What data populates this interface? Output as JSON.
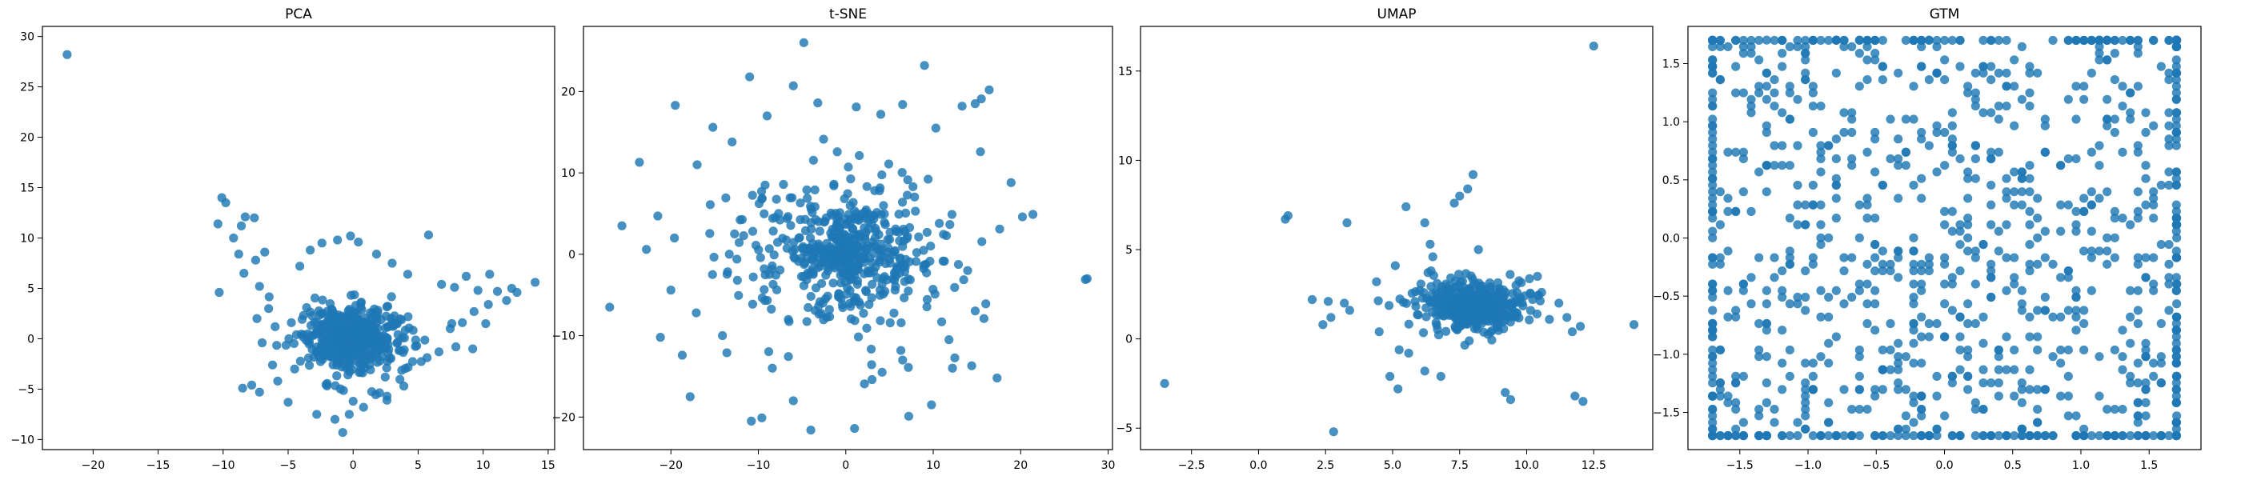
{
  "chart_data": [
    {
      "type": "scatter",
      "title": "PCA",
      "xlabel": "",
      "ylabel": "",
      "xlim": [
        -23.9,
        15.5
      ],
      "ylim": [
        -11.0,
        31.0
      ],
      "xticks": [
        -20,
        -15,
        -10,
        -5,
        0,
        5,
        10,
        15
      ],
      "yticks": [
        -10,
        -5,
        0,
        5,
        10,
        15,
        20,
        25,
        30
      ],
      "xtick_labels": [
        "−20",
        "−15",
        "−10",
        "−5",
        "0",
        "5",
        "10",
        "15"
      ],
      "ytick_labels": [
        "−10",
        "−5",
        "0",
        "5",
        "10",
        "15",
        "20",
        "25",
        "30"
      ],
      "color": "#1f77b4",
      "grid": false,
      "points": [
        [
          -22.0,
          28.2
        ],
        [
          -10.1,
          14.0
        ],
        [
          -9.8,
          13.5
        ],
        [
          -10.4,
          11.4
        ],
        [
          -9.2,
          10.0
        ],
        [
          -10.3,
          4.6
        ],
        [
          -8.6,
          11.2
        ],
        [
          -8.3,
          12.1
        ],
        [
          -7.6,
          12.0
        ],
        [
          -8.8,
          8.4
        ],
        [
          -7.5,
          7.8
        ],
        [
          -8.4,
          6.5
        ],
        [
          -6.8,
          8.6
        ],
        [
          -7.2,
          5.2
        ],
        [
          -6.5,
          3.0
        ],
        [
          -7.4,
          2.0
        ],
        [
          -6.0,
          1.2
        ],
        [
          -7.0,
          -0.4
        ],
        [
          -6.2,
          -2.6
        ],
        [
          -7.8,
          -4.6
        ],
        [
          -7.2,
          -5.3
        ],
        [
          -8.5,
          -4.9
        ],
        [
          -5.8,
          -4.2
        ],
        [
          -5.0,
          -6.3
        ],
        [
          -4.5,
          -3.0
        ],
        [
          -4.1,
          7.2
        ],
        [
          -3.3,
          8.8
        ],
        [
          -2.4,
          9.5
        ],
        [
          -1.2,
          9.8
        ],
        [
          -0.2,
          10.2
        ],
        [
          0.4,
          9.6
        ],
        [
          1.8,
          8.4
        ],
        [
          3.0,
          7.5
        ],
        [
          5.8,
          10.3
        ],
        [
          4.2,
          6.4
        ],
        [
          6.8,
          5.4
        ],
        [
          7.8,
          5.1
        ],
        [
          8.7,
          6.2
        ],
        [
          9.6,
          4.8
        ],
        [
          10.5,
          6.4
        ],
        [
          11.1,
          4.7
        ],
        [
          12.2,
          5.0
        ],
        [
          11.8,
          3.8
        ],
        [
          10.4,
          3.4
        ],
        [
          9.3,
          2.7
        ],
        [
          8.4,
          1.6
        ],
        [
          7.9,
          -0.8
        ],
        [
          6.6,
          -1.3
        ],
        [
          9.2,
          -1.0
        ],
        [
          10.2,
          1.5
        ],
        [
          12.6,
          4.6
        ],
        [
          14.0,
          5.6
        ],
        [
          -0.3,
          -7.5
        ],
        [
          -1.4,
          -8.0
        ],
        [
          -0.8,
          -9.3
        ],
        [
          0.8,
          -6.8
        ],
        [
          2.6,
          -6.1
        ],
        [
          3.9,
          -4.7
        ],
        [
          -2.8,
          -7.5
        ],
        [
          0.0,
          -6.2
        ]
      ],
      "blob": {
        "center": [
          0.0,
          0.0
        ],
        "spread": [
          3.1,
          2.9
        ],
        "count": 700
      }
    },
    {
      "type": "scatter",
      "title": "t-SNE",
      "xlabel": "",
      "ylabel": "",
      "xlim": [
        -30.0,
        30.5
      ],
      "ylim": [
        -24.0,
        28.0
      ],
      "xticks": [
        -20,
        -10,
        0,
        10,
        20,
        30
      ],
      "yticks": [
        -20,
        -10,
        0,
        10,
        20
      ],
      "xtick_labels": [
        "−20",
        "−10",
        "0",
        "10",
        "20",
        "30"
      ],
      "ytick_labels": [
        "−20",
        "−10",
        "0",
        "10",
        "20"
      ],
      "color": "#1f77b4",
      "grid": false,
      "points": [
        [
          -27.0,
          -6.5
        ],
        [
          27.6,
          -3.0
        ],
        [
          27.4,
          -3.1
        ],
        [
          -4.8,
          26.0
        ],
        [
          9.0,
          23.2
        ],
        [
          -11.0,
          21.8
        ],
        [
          -6.0,
          20.7
        ],
        [
          -19.5,
          18.3
        ],
        [
          -15.2,
          15.6
        ],
        [
          16.4,
          20.2
        ],
        [
          15.5,
          19.1
        ],
        [
          14.8,
          18.5
        ],
        [
          20.2,
          4.6
        ],
        [
          21.4,
          4.9
        ],
        [
          -22.8,
          0.6
        ],
        [
          -23.6,
          11.3
        ],
        [
          -21.5,
          4.7
        ],
        [
          -20.0,
          -4.4
        ],
        [
          -21.2,
          -10.2
        ],
        [
          -18.7,
          -12.4
        ],
        [
          -17.8,
          -17.5
        ],
        [
          -10.8,
          -20.5
        ],
        [
          -9.6,
          -20.1
        ],
        [
          -4.0,
          -21.6
        ],
        [
          1.0,
          -21.4
        ],
        [
          7.2,
          -19.9
        ],
        [
          9.8,
          -18.5
        ],
        [
          14.4,
          -13.7
        ],
        [
          12.2,
          -14.0
        ],
        [
          17.3,
          -15.2
        ],
        [
          6.5,
          18.4
        ],
        [
          4.0,
          17.2
        ],
        [
          1.2,
          18.1
        ],
        [
          -3.2,
          18.6
        ],
        [
          -9.0,
          17.0
        ],
        [
          -13.0,
          13.8
        ],
        [
          -17.0,
          11.0
        ],
        [
          -19.6,
          2.0
        ],
        [
          -17.1,
          -7.2
        ],
        [
          -13.6,
          -12.1
        ],
        [
          -8.4,
          -14.0
        ],
        [
          -6.0,
          -18.0
        ],
        [
          3.0,
          -15.4
        ],
        [
          6.5,
          -13.0
        ],
        [
          11.8,
          -10.5
        ],
        [
          15.8,
          -7.9
        ],
        [
          17.6,
          3.1
        ],
        [
          18.9,
          8.8
        ],
        [
          15.4,
          12.6
        ],
        [
          10.3,
          15.5
        ],
        [
          13.3,
          18.2
        ],
        [
          -15.5,
          6.1
        ],
        [
          -12.4,
          -3.2
        ],
        [
          -25.6,
          3.5
        ]
      ],
      "blob": {
        "center": [
          0.0,
          0.0
        ],
        "spread": [
          8.8,
          8.0
        ],
        "count": 580
      }
    },
    {
      "type": "scatter",
      "title": "UMAP",
      "xlabel": "",
      "ylabel": "",
      "xlim": [
        -4.4,
        14.7
      ],
      "ylim": [
        -6.2,
        17.5
      ],
      "xticks": [
        -2.5,
        0.0,
        2.5,
        5.0,
        7.5,
        10.0,
        12.5
      ],
      "yticks": [
        -5,
        0,
        5,
        10,
        15
      ],
      "xtick_labels": [
        "−2.5",
        "0.0",
        "2.5",
        "5.0",
        "7.5",
        "10.0",
        "12.5"
      ],
      "ytick_labels": [
        "−5",
        "0",
        "5",
        "10",
        "15"
      ],
      "color": "#1f77b4",
      "grid": false,
      "points": [
        [
          12.5,
          16.4
        ],
        [
          -3.5,
          -2.5
        ],
        [
          2.8,
          -5.2
        ],
        [
          1.0,
          6.7
        ],
        [
          1.1,
          6.9
        ],
        [
          3.3,
          6.5
        ],
        [
          5.5,
          7.4
        ],
        [
          6.2,
          6.5
        ],
        [
          8.0,
          9.2
        ],
        [
          7.5,
          8.0
        ],
        [
          7.3,
          7.6
        ],
        [
          7.8,
          8.4
        ],
        [
          2.0,
          2.2
        ],
        [
          2.6,
          2.1
        ],
        [
          3.2,
          2.0
        ],
        [
          2.7,
          1.2
        ],
        [
          2.4,
          0.8
        ],
        [
          3.4,
          1.6
        ],
        [
          14.0,
          0.8
        ],
        [
          11.8,
          -3.2
        ],
        [
          12.1,
          -3.5
        ],
        [
          11.7,
          0.4
        ],
        [
          5.2,
          -2.8
        ],
        [
          4.9,
          -2.1
        ],
        [
          6.2,
          -1.8
        ],
        [
          6.8,
          -2.1
        ],
        [
          9.2,
          -3.0
        ],
        [
          9.4,
          -3.4
        ],
        [
          9.6,
          3.0
        ],
        [
          10.4,
          3.5
        ],
        [
          11.2,
          2.0
        ],
        [
          4.4,
          3.2
        ],
        [
          5.1,
          4.1
        ],
        [
          6.5,
          4.6
        ],
        [
          8.2,
          5.0
        ],
        [
          4.5,
          0.4
        ],
        [
          5.6,
          -0.8
        ],
        [
          11.5,
          1.2
        ],
        [
          12.0,
          0.7
        ],
        [
          6.4,
          5.3
        ]
      ],
      "blob": {
        "center": [
          8.0,
          1.8
        ],
        "spread": [
          1.5,
          1.1
        ],
        "count": 650
      }
    },
    {
      "type": "scatter",
      "title": "GTM",
      "xlabel": "",
      "ylabel": "",
      "xlim": [
        -1.88,
        1.88
      ],
      "ylim": [
        -1.82,
        1.82
      ],
      "xticks": [
        -1.5,
        -1.0,
        -0.5,
        0.0,
        0.5,
        1.0,
        1.5
      ],
      "yticks": [
        -1.5,
        -1.0,
        -0.5,
        0.0,
        0.5,
        1.0,
        1.5
      ],
      "xtick_labels": [
        "−1.5",
        "−1.0",
        "−0.5",
        "0.0",
        "0.5",
        "1.0",
        "1.5"
      ],
      "ytick_labels": [
        "−1.5",
        "−1.0",
        "−0.5",
        "0.0",
        "0.5",
        "1.0",
        "1.5"
      ],
      "color": "#1f77b4",
      "grid": false,
      "points": [],
      "grid_fill": {
        "range": [
          -1.7,
          1.7
        ],
        "step": 0.0567,
        "count": 1100
      }
    }
  ]
}
